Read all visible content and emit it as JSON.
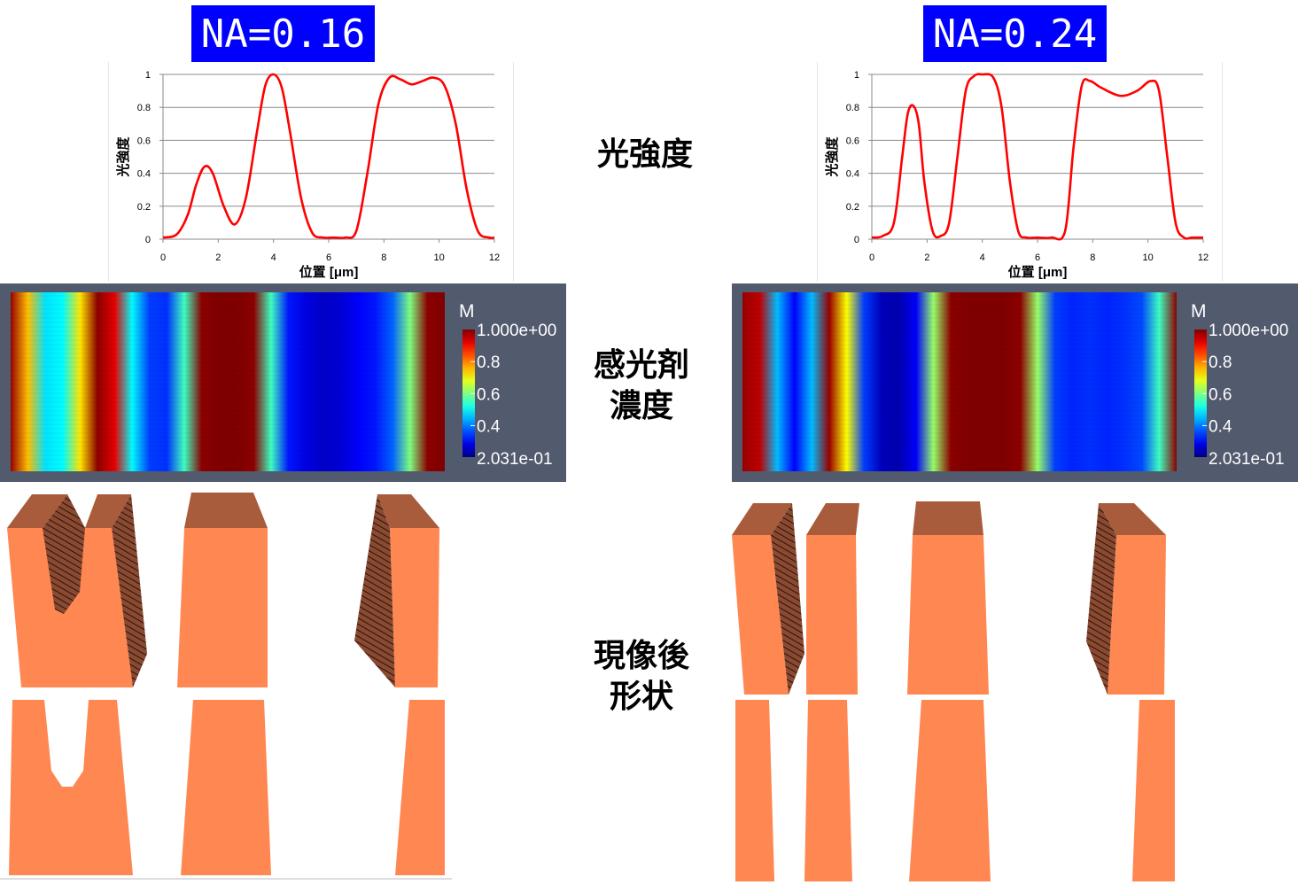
{
  "panels": [
    {
      "na_label": "NA=0.16"
    },
    {
      "na_label": "NA=0.24"
    }
  ],
  "row_labels": {
    "intensity": "光強度",
    "concentration_line1": "感光剤",
    "concentration_line2": "濃度",
    "shape_line1": "現像後",
    "shape_line2": "形状"
  },
  "colorbar": {
    "title": "M",
    "max_label": "1.000e+00",
    "min_label": "2.031e-01",
    "ticks": [
      "0.8",
      "0.6",
      "0.4"
    ]
  },
  "colors": {
    "na_label_bg": "#0000ff",
    "curve": "#ff0000",
    "resist": "#ff8752",
    "resist_top": "#a85c3c",
    "heatmap_bg": "#525a6e"
  },
  "chart_data": [
    {
      "type": "line",
      "xlabel": "位置 [μm]",
      "ylabel": "光強度",
      "xlim": [
        0,
        12
      ],
      "ylim": [
        0,
        1
      ],
      "xticks": [
        "0",
        "2",
        "4",
        "6",
        "8",
        "10",
        "12"
      ],
      "yticks": [
        "0",
        "0.2",
        "0.4",
        "0.6",
        "0.8",
        "1"
      ],
      "grid": true,
      "series": [
        {
          "color": "#ff0000",
          "x": [
            0,
            0.5,
            0.9,
            1.2,
            1.5,
            1.8,
            2.2,
            2.6,
            3.0,
            3.4,
            3.7,
            4.0,
            4.3,
            4.6,
            5.0,
            5.4,
            5.8,
            6.2,
            6.6,
            7.0,
            7.4,
            7.8,
            8.2,
            8.6,
            9.0,
            9.4,
            9.8,
            10.2,
            10.6,
            11.0,
            11.4,
            11.8,
            12.0
          ],
          "y": [
            0.01,
            0.03,
            0.15,
            0.33,
            0.44,
            0.4,
            0.2,
            0.09,
            0.25,
            0.65,
            0.93,
            1.0,
            0.92,
            0.65,
            0.25,
            0.04,
            0.01,
            0.01,
            0.01,
            0.05,
            0.4,
            0.82,
            0.98,
            0.97,
            0.94,
            0.96,
            0.98,
            0.93,
            0.7,
            0.3,
            0.05,
            0.01,
            0.01
          ]
        }
      ]
    },
    {
      "type": "line",
      "xlabel": "位置 [μm]",
      "ylabel": "光強度",
      "xlim": [
        0,
        12
      ],
      "ylim": [
        0,
        1
      ],
      "xticks": [
        "0",
        "2",
        "4",
        "6",
        "8",
        "10",
        "12"
      ],
      "yticks": [
        "0",
        "0.2",
        "0.4",
        "0.6",
        "0.8",
        "1"
      ],
      "grid": true,
      "series": [
        {
          "color": "#ff0000",
          "x": [
            0,
            0.4,
            0.8,
            1.1,
            1.3,
            1.5,
            1.7,
            1.9,
            2.2,
            2.5,
            2.8,
            3.1,
            3.4,
            3.7,
            4.0,
            4.4,
            4.7,
            5.0,
            5.3,
            5.6,
            6.0,
            6.5,
            7.0,
            7.3,
            7.6,
            7.9,
            8.3,
            9.0,
            9.6,
            10.1,
            10.4,
            10.7,
            11.0,
            11.3,
            11.6,
            12.0
          ],
          "y": [
            0.01,
            0.02,
            0.1,
            0.5,
            0.76,
            0.81,
            0.7,
            0.35,
            0.05,
            0.02,
            0.1,
            0.5,
            0.9,
            0.99,
            1.0,
            0.98,
            0.8,
            0.35,
            0.05,
            0.01,
            0.01,
            0.01,
            0.05,
            0.55,
            0.93,
            0.96,
            0.92,
            0.87,
            0.9,
            0.96,
            0.9,
            0.5,
            0.1,
            0.01,
            0.01,
            0.01
          ]
        }
      ]
    },
    {
      "type": "heatmap",
      "title": "M",
      "clim": [
        0.2031,
        1.0
      ],
      "x_profile": [
        0.98,
        0.75,
        0.48,
        0.5,
        0.72,
        0.99,
        0.92,
        0.5,
        0.35,
        0.34,
        0.55,
        0.99,
        1.0,
        1.0,
        0.99,
        0.55,
        0.32,
        0.28,
        0.26,
        0.27,
        0.3,
        0.32,
        0.38,
        0.6,
        0.99,
        1.0
      ]
    },
    {
      "type": "heatmap",
      "title": "M",
      "clim": [
        0.2031,
        1.0
      ],
      "x_profile": [
        0.98,
        0.95,
        0.45,
        0.3,
        0.45,
        0.98,
        0.7,
        0.35,
        0.25,
        0.24,
        0.3,
        0.62,
        0.99,
        1.0,
        1.0,
        1.0,
        0.99,
        0.62,
        0.35,
        0.33,
        0.34,
        0.33,
        0.34,
        0.36,
        0.55,
        0.99
      ]
    }
  ]
}
